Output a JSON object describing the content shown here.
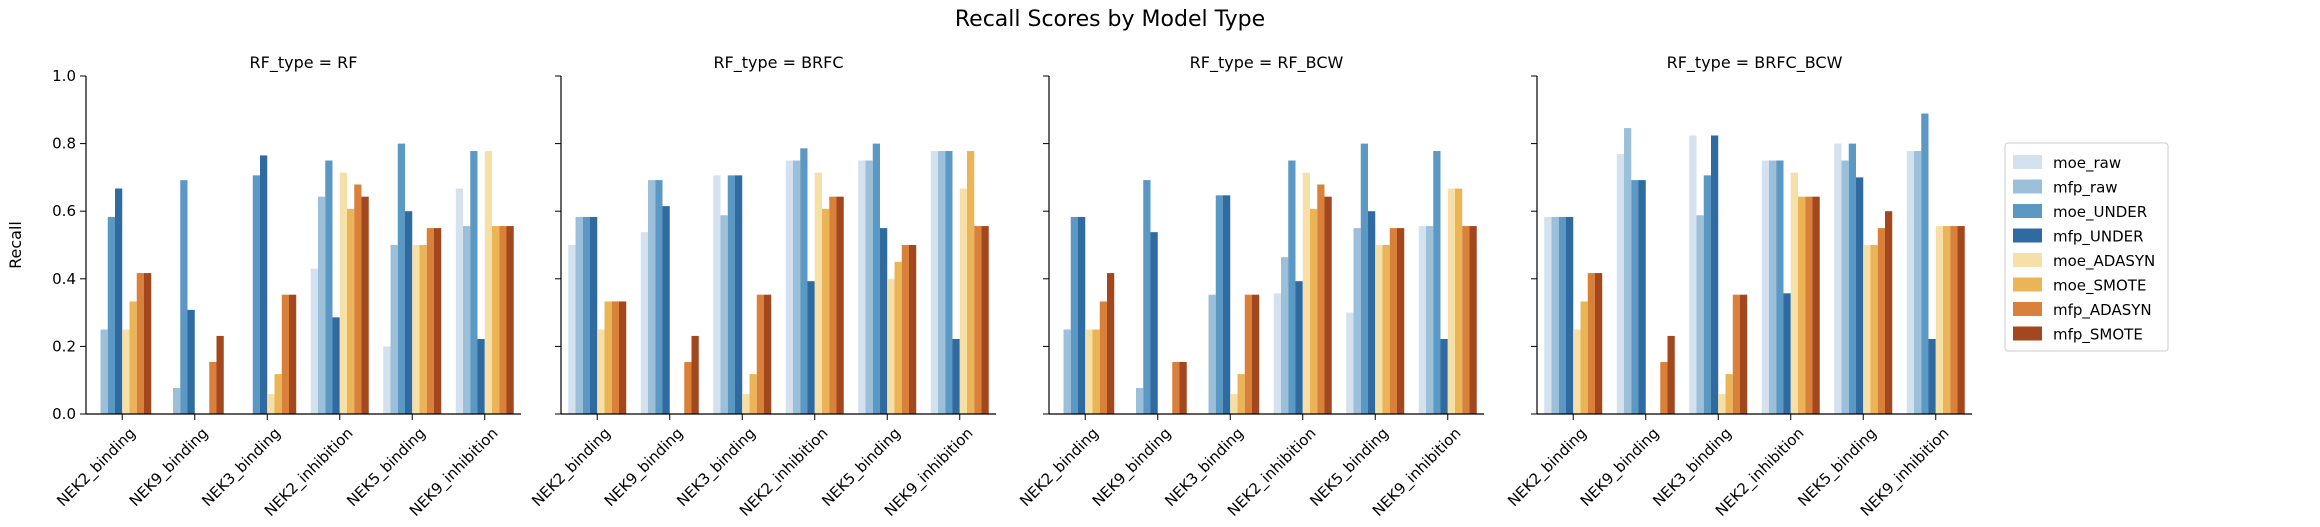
{
  "figure": {
    "title": "Recall Scores by Model Type"
  },
  "colors": {
    "moe_raw": "#d4e1ef",
    "mfp_raw": "#9dc0da",
    "moe_UNDER": "#5b99c4",
    "mfp_UNDER": "#2f6ba0",
    "moe_ADASYN": "#f7e0a8",
    "moe_SMOTE": "#ebb457",
    "mfp_ADASYN": "#d9803a",
    "mfp_SMOTE": "#a3481e"
  },
  "chart_data": [
    {
      "type": "bar",
      "title": "RF_type = RF",
      "xlabel": "",
      "ylabel": "Recall",
      "ylim": [
        0,
        1.0
      ],
      "yticks": [
        "0.0",
        "0.2",
        "0.4",
        "0.6",
        "0.8",
        "1.0"
      ],
      "categories": [
        "NEK2_binding",
        "NEK9_binding",
        "NEK3_binding",
        "NEK2_inhibition",
        "NEK5_binding",
        "NEK9_inhibition"
      ],
      "series": [
        {
          "name": "moe_raw",
          "values": [
            0.0,
            0.0,
            0.0,
            0.43,
            0.2,
            0.667
          ]
        },
        {
          "name": "mfp_raw",
          "values": [
            0.25,
            0.077,
            0.0,
            0.643,
            0.5,
            0.556
          ]
        },
        {
          "name": "moe_UNDER",
          "values": [
            0.583,
            0.692,
            0.706,
            0.75,
            0.8,
            0.778
          ]
        },
        {
          "name": "mfp_UNDER",
          "values": [
            0.667,
            0.308,
            0.765,
            0.286,
            0.6,
            0.222
          ]
        },
        {
          "name": "moe_ADASYN",
          "values": [
            0.25,
            0.0,
            0.059,
            0.714,
            0.5,
            0.778
          ]
        },
        {
          "name": "moe_SMOTE",
          "values": [
            0.333,
            0.0,
            0.118,
            0.607,
            0.5,
            0.556
          ]
        },
        {
          "name": "mfp_ADASYN",
          "values": [
            0.417,
            0.154,
            0.353,
            0.679,
            0.55,
            0.556
          ]
        },
        {
          "name": "mfp_SMOTE",
          "values": [
            0.417,
            0.231,
            0.353,
            0.643,
            0.55,
            0.556
          ]
        }
      ]
    },
    {
      "type": "bar",
      "title": "RF_type = BRFC",
      "xlabel": "",
      "ylabel": "",
      "ylim": [
        0,
        1.0
      ],
      "categories": [
        "NEK2_binding",
        "NEK9_binding",
        "NEK3_binding",
        "NEK2_inhibition",
        "NEK5_binding",
        "NEK9_inhibition"
      ],
      "series": [
        {
          "name": "moe_raw",
          "values": [
            0.5,
            0.538,
            0.706,
            0.75,
            0.75,
            0.778
          ]
        },
        {
          "name": "mfp_raw",
          "values": [
            0.583,
            0.692,
            0.588,
            0.75,
            0.75,
            0.778
          ]
        },
        {
          "name": "moe_UNDER",
          "values": [
            0.583,
            0.692,
            0.706,
            0.786,
            0.8,
            0.778
          ]
        },
        {
          "name": "mfp_UNDER",
          "values": [
            0.583,
            0.615,
            0.706,
            0.393,
            0.55,
            0.222
          ]
        },
        {
          "name": "moe_ADASYN",
          "values": [
            0.25,
            0.0,
            0.059,
            0.714,
            0.4,
            0.667
          ]
        },
        {
          "name": "moe_SMOTE",
          "values": [
            0.333,
            0.0,
            0.118,
            0.607,
            0.45,
            0.778
          ]
        },
        {
          "name": "mfp_ADASYN",
          "values": [
            0.333,
            0.154,
            0.353,
            0.643,
            0.5,
            0.556
          ]
        },
        {
          "name": "mfp_SMOTE",
          "values": [
            0.333,
            0.231,
            0.353,
            0.643,
            0.5,
            0.556
          ]
        }
      ]
    },
    {
      "type": "bar",
      "title": "RF_type = RF_BCW",
      "xlabel": "",
      "ylabel": "",
      "ylim": [
        0,
        1.0
      ],
      "categories": [
        "NEK2_binding",
        "NEK9_binding",
        "NEK3_binding",
        "NEK2_inhibition",
        "NEK5_binding",
        "NEK9_inhibition"
      ],
      "series": [
        {
          "name": "moe_raw",
          "values": [
            0.0,
            0.0,
            0.0,
            0.357,
            0.3,
            0.556
          ]
        },
        {
          "name": "mfp_raw",
          "values": [
            0.25,
            0.077,
            0.353,
            0.464,
            0.55,
            0.556
          ]
        },
        {
          "name": "moe_UNDER",
          "values": [
            0.583,
            0.692,
            0.647,
            0.75,
            0.8,
            0.778
          ]
        },
        {
          "name": "mfp_UNDER",
          "values": [
            0.583,
            0.538,
            0.647,
            0.393,
            0.6,
            0.222
          ]
        },
        {
          "name": "moe_ADASYN",
          "values": [
            0.25,
            0.0,
            0.059,
            0.714,
            0.5,
            0.667
          ]
        },
        {
          "name": "moe_SMOTE",
          "values": [
            0.25,
            0.0,
            0.118,
            0.607,
            0.5,
            0.667
          ]
        },
        {
          "name": "mfp_ADASYN",
          "values": [
            0.333,
            0.154,
            0.353,
            0.679,
            0.55,
            0.556
          ]
        },
        {
          "name": "mfp_SMOTE",
          "values": [
            0.417,
            0.154,
            0.353,
            0.643,
            0.55,
            0.556
          ]
        }
      ]
    },
    {
      "type": "bar",
      "title": "RF_type = BRFC_BCW",
      "xlabel": "",
      "ylabel": "",
      "ylim": [
        0,
        1.0
      ],
      "categories": [
        "NEK2_binding",
        "NEK9_binding",
        "NEK3_binding",
        "NEK2_inhibition",
        "NEK5_binding",
        "NEK9_inhibition"
      ],
      "series": [
        {
          "name": "moe_raw",
          "values": [
            0.583,
            0.769,
            0.824,
            0.75,
            0.8,
            0.778
          ]
        },
        {
          "name": "mfp_raw",
          "values": [
            0.583,
            0.846,
            0.588,
            0.75,
            0.75,
            0.778
          ]
        },
        {
          "name": "moe_UNDER",
          "values": [
            0.583,
            0.692,
            0.706,
            0.75,
            0.8,
            0.889
          ]
        },
        {
          "name": "mfp_UNDER",
          "values": [
            0.583,
            0.692,
            0.824,
            0.357,
            0.7,
            0.222
          ]
        },
        {
          "name": "moe_ADASYN",
          "values": [
            0.25,
            0.0,
            0.059,
            0.714,
            0.5,
            0.556
          ]
        },
        {
          "name": "moe_SMOTE",
          "values": [
            0.333,
            0.0,
            0.118,
            0.643,
            0.5,
            0.556
          ]
        },
        {
          "name": "mfp_ADASYN",
          "values": [
            0.417,
            0.154,
            0.353,
            0.643,
            0.55,
            0.556
          ]
        },
        {
          "name": "mfp_SMOTE",
          "values": [
            0.417,
            0.231,
            0.353,
            0.643,
            0.6,
            0.556
          ]
        }
      ]
    }
  ],
  "legend": {
    "placement": "right",
    "entries": [
      "moe_raw",
      "mfp_raw",
      "moe_UNDER",
      "mfp_UNDER",
      "moe_ADASYN",
      "moe_SMOTE",
      "mfp_ADASYN",
      "mfp_SMOTE"
    ]
  }
}
